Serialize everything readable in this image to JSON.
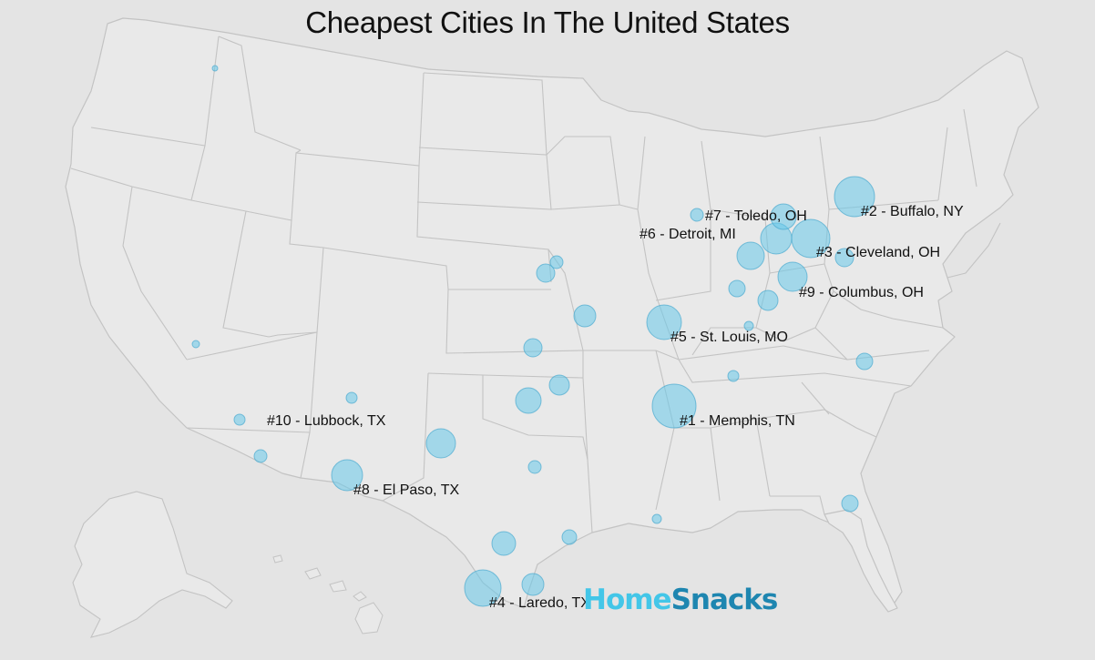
{
  "title": "Cheapest Cities In The United States",
  "logo": {
    "part1": "Home",
    "part2": "Snacks"
  },
  "colors": {
    "background": "#e4e4e4",
    "land": "#e9e9e9",
    "border": "#c3c3c3",
    "bubble_fill": "#67c8ea",
    "bubble_stroke": "#4aa9cf",
    "logo_light": "#43c6e8",
    "logo_dark": "#1e86b0"
  },
  "ranked_cities": [
    {
      "rank": 1,
      "label": "#1 - Memphis, TN"
    },
    {
      "rank": 2,
      "label": "#2 - Buffalo, NY"
    },
    {
      "rank": 3,
      "label": "#3 - Cleveland, OH"
    },
    {
      "rank": 4,
      "label": "#4 - Laredo, TX"
    },
    {
      "rank": 5,
      "label": "#5 - St. Louis, MO"
    },
    {
      "rank": 6,
      "label": "#6 - Detroit, MI"
    },
    {
      "rank": 7,
      "label": "#7 - Toledo, OH"
    },
    {
      "rank": 8,
      "label": "#8 - El Paso, TX"
    },
    {
      "rank": 9,
      "label": "#9 - Columbus, OH"
    },
    {
      "rank": 10,
      "label": "#10 - Lubbock, TX"
    }
  ]
}
